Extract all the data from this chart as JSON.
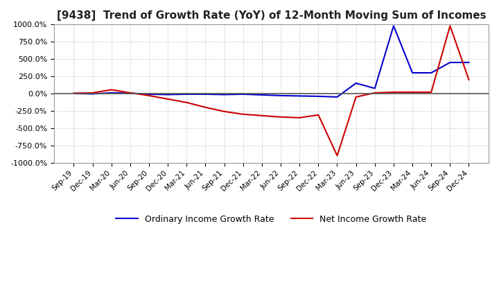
{
  "title": "[9438]  Trend of Growth Rate (YoY) of 12-Month Moving Sum of Incomes",
  "title_fontsize": 11,
  "background_color": "#ffffff",
  "plot_background_color": "#ffffff",
  "grid_color": "#aaaaaa",
  "ylim": [
    -1000,
    1000
  ],
  "yticks": [
    -1000,
    -750,
    -500,
    -250,
    0,
    250,
    500,
    750,
    1000
  ],
  "ytick_labels": [
    "-1000.0%",
    "-750.0%",
    "-500.0%",
    "-250.0%",
    "0.0%",
    "250.0%",
    "500.0%",
    "750.0%",
    "1000.0%"
  ],
  "ordinary_color": "#0000cc",
  "net_color": "#cc0000",
  "legend_ordinary": "Ordinary Income Growth Rate",
  "legend_net": "Net Income Growth Rate",
  "x_dates": [
    "Sep-19",
    "Dec-19",
    "Mar-20",
    "Jun-20",
    "Sep-20",
    "Dec-20",
    "Mar-21",
    "Jun-21",
    "Sep-21",
    "Dec-21",
    "Mar-22",
    "Jun-22",
    "Sep-22",
    "Dec-22",
    "Mar-23",
    "Jun-23",
    "Sep-23",
    "Dec-23",
    "Mar-24",
    "Jun-24",
    "Sep-24",
    "Dec-24"
  ],
  "ordinary_y": [
    0,
    -5,
    10,
    5,
    -10,
    -15,
    -10,
    -10,
    -15,
    -10,
    -20,
    -30,
    -35,
    -40,
    -50,
    150,
    75,
    980,
    300,
    300,
    450,
    450
  ],
  "net_y": [
    5,
    10,
    55,
    10,
    -30,
    -80,
    -130,
    -200,
    -260,
    -300,
    -320,
    -340,
    -350,
    -310,
    -900,
    -50,
    10,
    20,
    20,
    20,
    980,
    200
  ],
  "line_width": 1.5
}
